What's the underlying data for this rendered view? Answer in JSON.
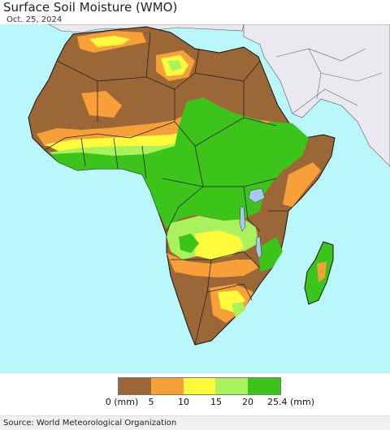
{
  "title": "Surface Soil Moisture (WMO)",
  "date": "Oct. 25, 2024",
  "source": "Source: World Meteorological Organization",
  "colors": {
    "ocean": "#b9f7fb",
    "land_outside": "#ece8ef",
    "border": "#000000",
    "bin_0_5": "#9c6737",
    "bin_5_10": "#f7a03a",
    "bin_10_15": "#fdfb3c",
    "bin_15_20": "#a9f25d",
    "bin_20_25": "#3cc41b",
    "water": "#a8c8f0"
  },
  "legend": {
    "colors": [
      "#9c6737",
      "#f7a03a",
      "#fdfb3c",
      "#a9f25d",
      "#3cc41b"
    ],
    "labels": [
      "0 (mm)",
      "5",
      "10",
      "15",
      "20",
      "25.4 (mm)"
    ]
  }
}
